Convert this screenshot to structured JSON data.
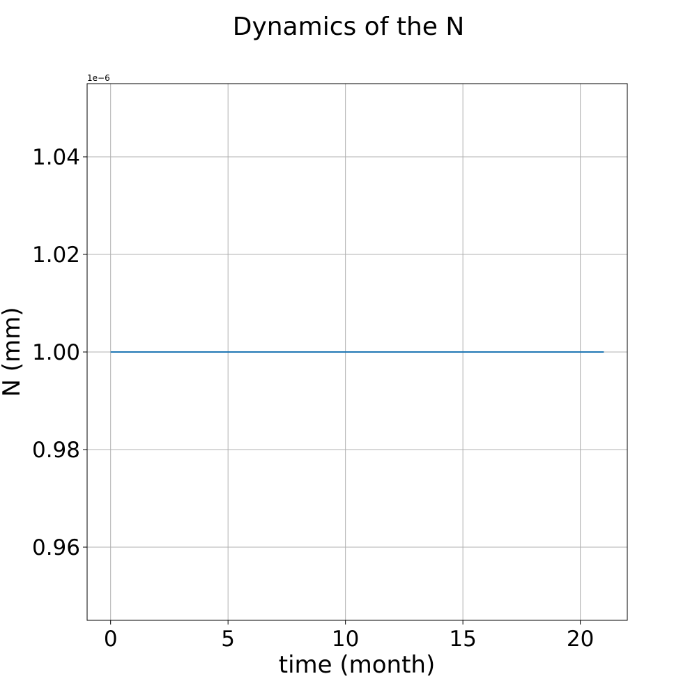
{
  "chart_data": {
    "type": "line",
    "title": "Dynamics of the N",
    "xlabel": "time (month)",
    "ylabel": "N (mm)",
    "y_offset_label": "1e−6",
    "xlim": [
      -1,
      22
    ],
    "ylim": [
      0.945,
      1.055
    ],
    "x_ticks": [
      0,
      5,
      10,
      15,
      20
    ],
    "x_tick_labels": [
      "0",
      "5",
      "10",
      "15",
      "20"
    ],
    "y_ticks": [
      0.96,
      0.98,
      1.0,
      1.02,
      1.04
    ],
    "y_tick_labels": [
      "0.96",
      "0.98",
      "1.00",
      "1.02",
      "1.04"
    ],
    "grid": true,
    "series": [
      {
        "color": "#1f77b4",
        "x": [
          0,
          21
        ],
        "y": [
          1.0,
          1.0
        ]
      }
    ]
  }
}
